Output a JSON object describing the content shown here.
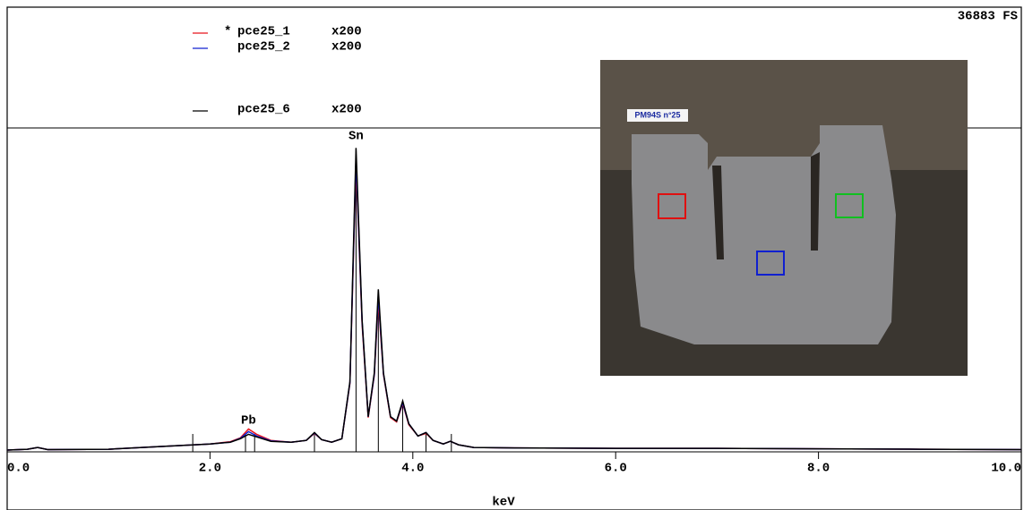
{
  "chart_data": {
    "type": "line",
    "full_scale_label": "36883 FS",
    "x_label": "keV",
    "x": [
      0,
      0.2,
      0.3,
      0.4,
      1.0,
      1.5,
      2.0,
      2.2,
      2.3,
      2.38,
      2.46,
      2.6,
      2.8,
      2.95,
      3.03,
      3.1,
      3.2,
      3.3,
      3.38,
      3.44,
      3.5,
      3.56,
      3.62,
      3.66,
      3.71,
      3.78,
      3.84,
      3.9,
      3.96,
      4.05,
      4.13,
      4.2,
      4.3,
      4.37,
      4.45,
      4.6,
      5,
      6,
      7,
      8,
      9,
      10
    ],
    "series": [
      {
        "name": "pce25_1",
        "flag": "*",
        "scale_label": "x200",
        "color": "#e8141c",
        "values": [
          200,
          300,
          500,
          250,
          300,
          600,
          900,
          1150,
          1600,
          2600,
          2000,
          1300,
          1100,
          1300,
          2100,
          1400,
          1100,
          1500,
          7800,
          32800,
          14500,
          3900,
          8700,
          17200,
          8800,
          3900,
          3400,
          5500,
          3100,
          1800,
          2100,
          1300,
          900,
          1200,
          800,
          500,
          450,
          400,
          400,
          350,
          300,
          250
        ]
      },
      {
        "name": "pce25_2",
        "scale_label": "x200",
        "color": "#1020d0",
        "values": [
          200,
          300,
          500,
          250,
          300,
          600,
          900,
          1100,
          1550,
          2300,
          1800,
          1250,
          1100,
          1300,
          2150,
          1400,
          1100,
          1500,
          7900,
          33500,
          14800,
          4000,
          8800,
          17800,
          8900,
          4000,
          3500,
          5600,
          3200,
          1800,
          2200,
          1300,
          900,
          1200,
          800,
          500,
          450,
          400,
          400,
          350,
          300,
          250
        ]
      },
      {
        "name": "pce25_6",
        "scale_label": "x200",
        "color": "#000000",
        "values": [
          200,
          300,
          500,
          250,
          300,
          600,
          900,
          1100,
          1500,
          2000,
          1700,
          1200,
          1100,
          1300,
          2200,
          1400,
          1100,
          1500,
          8000,
          34600,
          15000,
          4000,
          9000,
          18500,
          9000,
          4000,
          3500,
          5800,
          3200,
          1800,
          2200,
          1300,
          900,
          1200,
          800,
          500,
          450,
          400,
          400,
          350,
          300,
          250
        ]
      }
    ],
    "xlim": [
      0,
      10
    ],
    "ylim": [
      0,
      36883
    ],
    "xticks": [
      {
        "value": 0,
        "label": "0.0"
      },
      {
        "value": 2,
        "label": "2.0"
      },
      {
        "value": 4,
        "label": "4.0"
      },
      {
        "value": 6,
        "label": "6.0"
      },
      {
        "value": 8,
        "label": "8.0"
      },
      {
        "value": 10,
        "label": "10.0"
      }
    ],
    "marker_lines": [
      1.83,
      2.35,
      2.44,
      3.03,
      3.44,
      3.66,
      3.9,
      4.13,
      4.38
    ],
    "annotations": [
      {
        "text": "Pb",
        "x": 2.38
      },
      {
        "text": "Sn",
        "x": 3.44
      }
    ],
    "inset": {
      "label": "PM94S n°25"
    }
  }
}
